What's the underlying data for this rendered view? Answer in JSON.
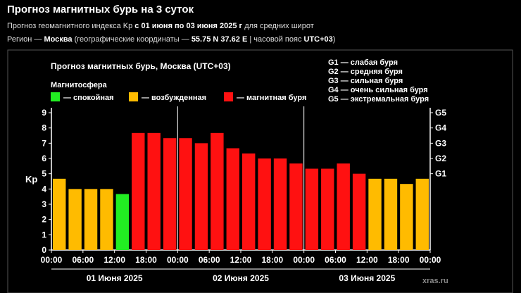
{
  "header": {
    "title": "Прогноз магнитных бурь на 3 суток",
    "line1": {
      "prefix": "Прогноз геомагнитного индекса Kp ",
      "dates": "с 01 июня по 03 июня 2025 г",
      "suffix": " для средних широт"
    },
    "line2": {
      "prefix": "Регион — ",
      "city": "Москва",
      "middle": " (географические координаты — ",
      "coords": "55.75 N 37.62 E",
      "sep": " | часовой пояс ",
      "tz": "UTC+03",
      "end": ")"
    }
  },
  "chart_data": {
    "type": "bar",
    "title": "Прогноз магнитных бурь, Москва (UTC+03)",
    "ylabel": "Kp",
    "ylim": [
      0,
      9
    ],
    "yticks": [
      0,
      1,
      2,
      3,
      4,
      5,
      6,
      7,
      8,
      9
    ],
    "xtick_labels": [
      "00:00",
      "06:00",
      "12:00",
      "18:00",
      "00:00",
      "06:00",
      "12:00",
      "18:00",
      "00:00",
      "06:00",
      "12:00",
      "18:00",
      "00:00"
    ],
    "days": [
      "01 Июня 2025",
      "02 Июня 2025",
      "03 Июня 2025"
    ],
    "values": [
      4.67,
      4.0,
      4.0,
      4.0,
      3.67,
      7.67,
      7.67,
      7.33,
      7.33,
      7.0,
      7.67,
      6.67,
      6.33,
      6.0,
      6.0,
      5.67,
      5.33,
      5.33,
      5.67,
      5.0,
      4.67,
      4.67,
      4.33,
      4.67
    ],
    "legend_title": "Магнитосфера",
    "legend": [
      {
        "label": "— спокойная",
        "color": "#22ee22"
      },
      {
        "label": "— возбужденная",
        "color": "#ffbb00"
      },
      {
        "label": "— магнитная буря",
        "color": "#ff1111"
      }
    ],
    "g_levels": [
      {
        "label": "G1",
        "kp": 5
      },
      {
        "label": "G2",
        "kp": 6
      },
      {
        "label": "G3",
        "kp": 7
      },
      {
        "label": "G4",
        "kp": 8
      },
      {
        "label": "G5",
        "kp": 9
      }
    ],
    "g_legend": [
      "G1 — слабая буря",
      "G2 — средняя буря",
      "G3 — сильная буря",
      "G4 — очень сильная буря",
      "G5 — экстремальная буря"
    ],
    "thresholds": {
      "quiet_below": 4,
      "storm_from": 5
    },
    "watermark": "xras.ru"
  }
}
